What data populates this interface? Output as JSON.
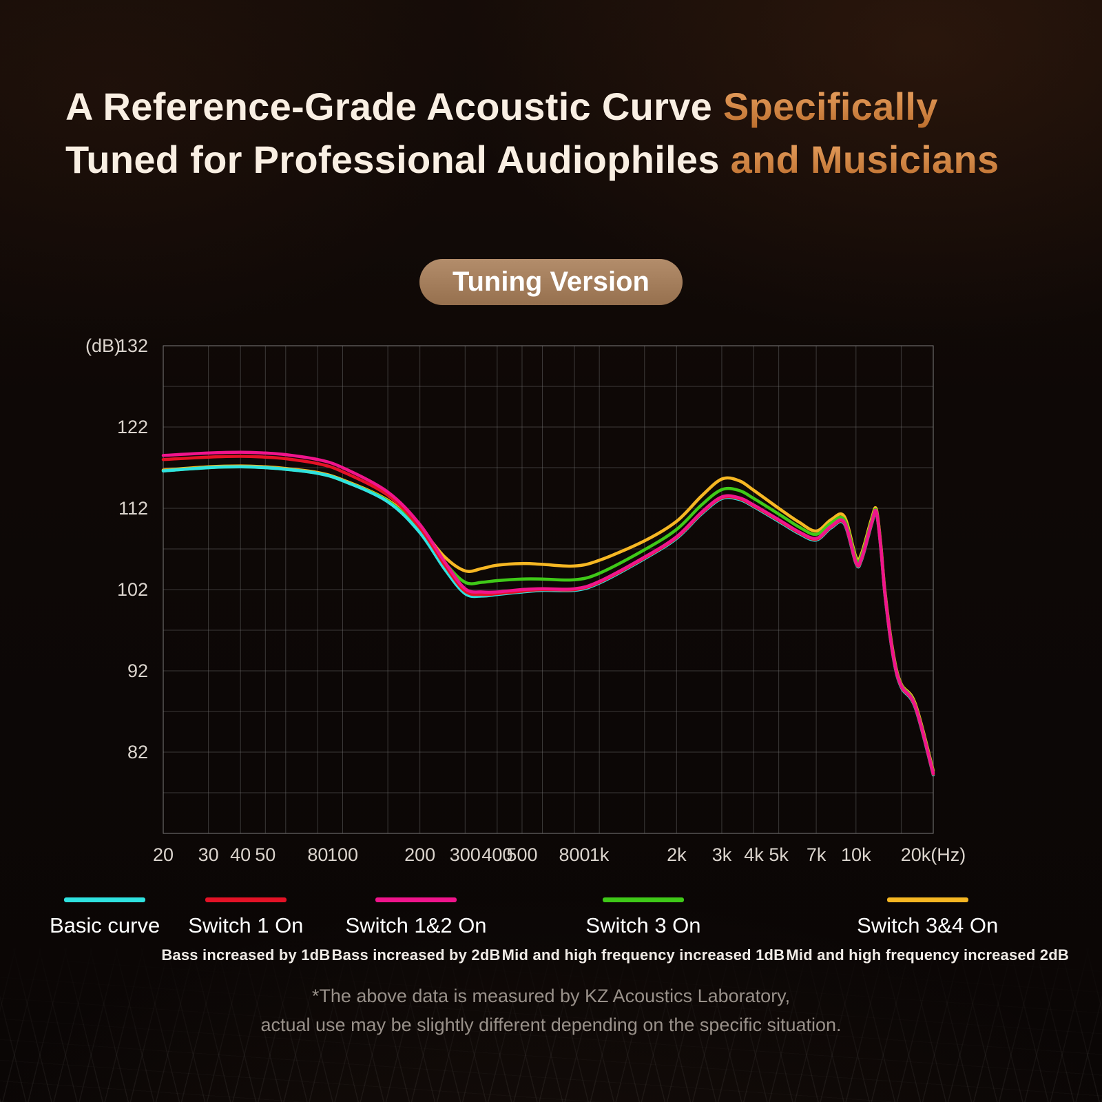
{
  "page": {
    "title": {
      "line1_main": "A Reference-Grade Acoustic Curve ",
      "line1_accent": "Specifically",
      "line2_main": "Tuned for Professional Audiophiles ",
      "line2_accent": "and Musicians"
    },
    "badge": "Tuning Version",
    "footer_line1": "*The above data is measured by KZ Acoustics Laboratory,",
    "footer_line2": "actual use may be slightly different depending on the specific situation.",
    "accent_color": "#c97a3d"
  },
  "legend": {
    "items": [
      {
        "label": "Basic curve",
        "sub": "",
        "color": "#2fe2e0"
      },
      {
        "label": "Switch 1 On",
        "sub": "Bass increased by 1dB",
        "color": "#e41226"
      },
      {
        "label": "Switch 1&2 On",
        "sub": "Bass increased by 2dB",
        "color": "#f0148c"
      },
      {
        "label": "Switch 3 On",
        "sub": "Mid and high frequency increased 1dB",
        "color": "#3fc918"
      },
      {
        "label": "Switch 3&4 On",
        "sub": "Mid and high frequency increased 2dB",
        "color": "#f6b723"
      }
    ]
  },
  "chart_data": {
    "type": "line",
    "title": "Tuning Version",
    "ylabel": "(dB)",
    "x_scale": "log",
    "x_min": 20,
    "x_max": 20000,
    "y_min": 72,
    "y_max": 132,
    "y_gridline_step": 5,
    "grid": true,
    "legend_position": "bottom",
    "y_ticks": [
      132,
      122,
      112,
      102,
      92,
      82
    ],
    "x_ticks": [
      {
        "value": 20,
        "label": "20"
      },
      {
        "value": 30,
        "label": "30"
      },
      {
        "value": 40,
        "label": "40"
      },
      {
        "value": 50,
        "label": "50"
      },
      {
        "value": 80,
        "label": "80"
      },
      {
        "value": 100,
        "label": "100"
      },
      {
        "value": 200,
        "label": "200"
      },
      {
        "value": 300,
        "label": "300"
      },
      {
        "value": 400,
        "label": "400"
      },
      {
        "value": 500,
        "label": "500"
      },
      {
        "value": 800,
        "label": "800"
      },
      {
        "value": 1000,
        "label": "1k"
      },
      {
        "value": 2000,
        "label": "2k"
      },
      {
        "value": 3000,
        "label": "3k"
      },
      {
        "value": 4000,
        "label": "4k"
      },
      {
        "value": 5000,
        "label": "5k"
      },
      {
        "value": 7000,
        "label": "7k"
      },
      {
        "value": 10000,
        "label": "10k"
      },
      {
        "value": 20000,
        "label": "20k(Hz)"
      }
    ],
    "x_gridlines": [
      20,
      30,
      40,
      50,
      60,
      80,
      100,
      150,
      200,
      300,
      400,
      500,
      600,
      800,
      1000,
      1500,
      2000,
      3000,
      4000,
      5000,
      7000,
      10000,
      15000,
      20000
    ],
    "frequencies_hz": [
      20,
      30,
      40,
      50,
      60,
      80,
      100,
      150,
      200,
      250,
      300,
      350,
      400,
      500,
      600,
      800,
      1000,
      1500,
      2000,
      2500,
      3000,
      3500,
      4000,
      5000,
      6000,
      7000,
      8000,
      9000,
      10000,
      10500,
      11500,
      12000,
      12500,
      13000,
      14000,
      15000,
      17000,
      20000
    ],
    "series": [
      {
        "id": "basic-curve",
        "name": "Basic curve",
        "description": "",
        "color": "#2fe2e0",
        "values": [
          116.6,
          117.0,
          117.1,
          117.0,
          116.8,
          116.3,
          115.4,
          112.8,
          109.0,
          104.5,
          101.5,
          101.2,
          101.4,
          101.7,
          101.9,
          101.9,
          102.8,
          105.8,
          108.3,
          111.3,
          113.2,
          113.1,
          112.2,
          110.4,
          108.9,
          108.1,
          109.6,
          110.1,
          105.2,
          105.6,
          110.0,
          111.4,
          107.0,
          101.0,
          93.5,
          90.0,
          87.5,
          79.2
        ]
      },
      {
        "id": "switch-1-on",
        "name": "Switch 1 On",
        "description": "Bass increased by 1dB",
        "color": "#e41226",
        "values": [
          118.0,
          118.3,
          118.4,
          118.3,
          118.1,
          117.5,
          116.5,
          113.6,
          109.6,
          105.0,
          101.8,
          101.4,
          101.5,
          101.8,
          102.0,
          102.0,
          102.9,
          105.9,
          108.4,
          111.4,
          113.3,
          113.2,
          112.3,
          110.5,
          109.0,
          108.2,
          109.7,
          110.2,
          105.3,
          105.7,
          110.1,
          111.5,
          107.1,
          101.1,
          93.6,
          90.1,
          87.6,
          79.3
        ]
      },
      {
        "id": "switch-1-2-on",
        "name": "Switch 1&2 On",
        "description": "Bass increased by 2dB",
        "color": "#f0148c",
        "values": [
          118.5,
          118.8,
          118.9,
          118.8,
          118.6,
          118.0,
          117.0,
          114.0,
          110.0,
          105.4,
          102.1,
          101.7,
          101.7,
          102.0,
          102.1,
          102.1,
          103.0,
          106.0,
          108.5,
          111.5,
          113.4,
          113.3,
          112.4,
          110.6,
          109.1,
          108.3,
          109.8,
          110.3,
          105.4,
          105.8,
          110.2,
          111.6,
          107.2,
          101.2,
          93.7,
          90.2,
          87.7,
          79.4
        ]
      },
      {
        "id": "switch-3-on",
        "name": "Switch 3 On",
        "description": "Mid and high frequency increased 1dB",
        "color": "#3fc918",
        "values": [
          116.6,
          117.0,
          117.1,
          117.0,
          116.8,
          116.3,
          115.4,
          112.9,
          109.3,
          105.3,
          102.9,
          102.9,
          103.1,
          103.3,
          103.3,
          103.2,
          104.0,
          106.9,
          109.4,
          112.4,
          114.3,
          114.2,
          113.2,
          111.3,
          109.7,
          108.8,
          110.2,
          110.6,
          105.7,
          106.1,
          110.4,
          111.7,
          107.3,
          101.3,
          93.8,
          90.3,
          87.8,
          79.5
        ]
      },
      {
        "id": "switch-3-4-on",
        "name": "Switch 3&4 On",
        "description": "Mid and high frequency increased 2dB",
        "color": "#f6b723",
        "values": [
          116.7,
          117.1,
          117.2,
          117.1,
          116.9,
          116.4,
          115.5,
          113.0,
          109.6,
          106.0,
          104.3,
          104.6,
          105.0,
          105.2,
          105.1,
          104.9,
          105.6,
          108.0,
          110.4,
          113.5,
          115.6,
          115.4,
          114.2,
          112.0,
          110.3,
          109.2,
          110.6,
          111.0,
          106.0,
          106.4,
          110.7,
          111.9,
          107.5,
          101.5,
          94.0,
          90.4,
          88.0,
          79.7
        ]
      }
    ],
    "z_order": [
      4,
      3,
      0,
      1,
      2
    ]
  }
}
